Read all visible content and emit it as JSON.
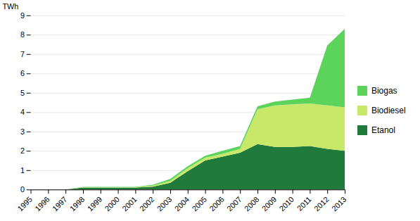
{
  "chart_data": {
    "type": "area",
    "stacked": true,
    "x": [
      1995,
      1996,
      1997,
      1998,
      1999,
      2000,
      2001,
      2002,
      2003,
      2004,
      2005,
      2006,
      2007,
      2008,
      2009,
      2010,
      2011,
      2012,
      2013
    ],
    "series": [
      {
        "name": "Etanol",
        "color": "#1f7a3c",
        "values": [
          0.0,
          0.0,
          0.0,
          0.1,
          0.1,
          0.1,
          0.1,
          0.15,
          0.35,
          0.95,
          1.5,
          1.7,
          1.9,
          2.35,
          2.2,
          2.2,
          2.25,
          2.1,
          2.0
        ]
      },
      {
        "name": "Biodiesel",
        "color": "#c8e86a",
        "values": [
          0.0,
          0.0,
          0.0,
          0.02,
          0.02,
          0.02,
          0.02,
          0.05,
          0.1,
          0.15,
          0.15,
          0.15,
          0.2,
          1.8,
          2.15,
          2.2,
          2.2,
          2.25,
          2.25
        ]
      },
      {
        "name": "Biogas",
        "color": "#5cd45c",
        "values": [
          0.0,
          0.0,
          0.0,
          0.02,
          0.02,
          0.02,
          0.02,
          0.05,
          0.1,
          0.1,
          0.1,
          0.15,
          0.15,
          0.15,
          0.2,
          0.25,
          0.3,
          3.1,
          4.05
        ]
      }
    ],
    "ylabel": "TWh",
    "xlim": [
      1995,
      2013
    ],
    "xticks": [
      1995,
      1996,
      1997,
      1998,
      1999,
      2000,
      2001,
      2002,
      2003,
      2004,
      2005,
      2006,
      2007,
      2008,
      2009,
      2010,
      2011,
      2012,
      2013
    ],
    "ylim": [
      0,
      9
    ],
    "yticks": [
      0,
      1,
      2,
      3,
      4,
      5,
      6,
      7,
      8,
      9
    ],
    "grid": "y",
    "legend": "right"
  }
}
